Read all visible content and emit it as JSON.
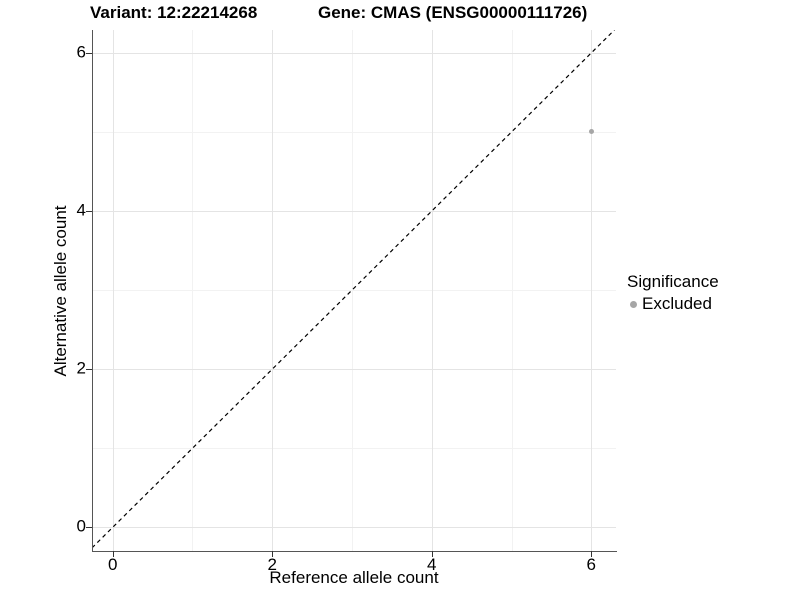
{
  "figure": {
    "title_left": "Variant: 12:22214268",
    "title_right": "Gene: CMAS (ENSG00000111726)"
  },
  "chart_data": {
    "type": "scatter",
    "title": "Variant: 12:22214268    Gene: CMAS (ENSG00000111726)",
    "title_left": "Variant: 12:22214268",
    "title_right": "Gene: CMAS (ENSG00000111726)",
    "xlabel": "Reference allele count",
    "ylabel": "Alternative allele count",
    "xlim": [
      -0.26,
      6.31
    ],
    "ylim": [
      -0.3,
      6.29
    ],
    "x_major_ticks": [
      0,
      2,
      4,
      6
    ],
    "y_major_ticks": [
      0,
      2,
      4,
      6
    ],
    "x_minor_ticks": [
      1,
      3,
      5
    ],
    "y_minor_ticks": [
      1,
      3,
      5
    ],
    "grid": "major-and-minor, light gray on white panel",
    "legend": {
      "title": "Significance",
      "position": "right",
      "entries": [
        {
          "label": "Excluded",
          "color": "#a6a6a6"
        }
      ]
    },
    "series": [
      {
        "name": "Excluded",
        "color": "#a6a6a6",
        "points": [
          [
            6,
            5
          ]
        ]
      }
    ],
    "reference_line": {
      "kind": "identity y=x",
      "linetype": "dashed",
      "color": "#000000"
    }
  },
  "colors": {
    "background": "#ffffff",
    "grid_major": "#e4e4e4",
    "grid_minor": "#f2f2f2",
    "axis_line": "#555555",
    "tick_mark": "#333333",
    "text": "#000000"
  }
}
